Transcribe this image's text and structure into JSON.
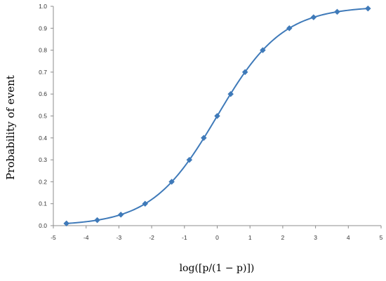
{
  "chart_data": {
    "type": "line",
    "title": "",
    "xlabel": "log([p/(1 − p)])",
    "ylabel": "Probability of event",
    "xlim": [
      -5,
      5
    ],
    "ylim": [
      0.0,
      1.0
    ],
    "x_ticks": [
      "-5",
      "-4",
      "-3",
      "-2",
      "-1",
      "0",
      "1",
      "2",
      "3",
      "4",
      "5"
    ],
    "y_ticks": [
      "0.0",
      "0.1",
      "0.2",
      "0.3",
      "0.4",
      "0.5",
      "0.6",
      "0.7",
      "0.8",
      "0.9",
      "1.0"
    ],
    "grid": false,
    "legend": "none",
    "color": "#3f7ab9",
    "series": [
      {
        "x": [
          -4.6,
          -3.66,
          -2.94,
          -2.2,
          -1.39,
          -0.85,
          -0.41,
          0.0,
          0.41,
          0.85,
          1.39,
          2.2,
          2.94,
          3.66,
          4.6
        ],
        "y": [
          0.01,
          0.025,
          0.05,
          0.1,
          0.2,
          0.3,
          0.4,
          0.5,
          0.6,
          0.7,
          0.8,
          0.9,
          0.95,
          0.975,
          0.99
        ]
      }
    ]
  }
}
